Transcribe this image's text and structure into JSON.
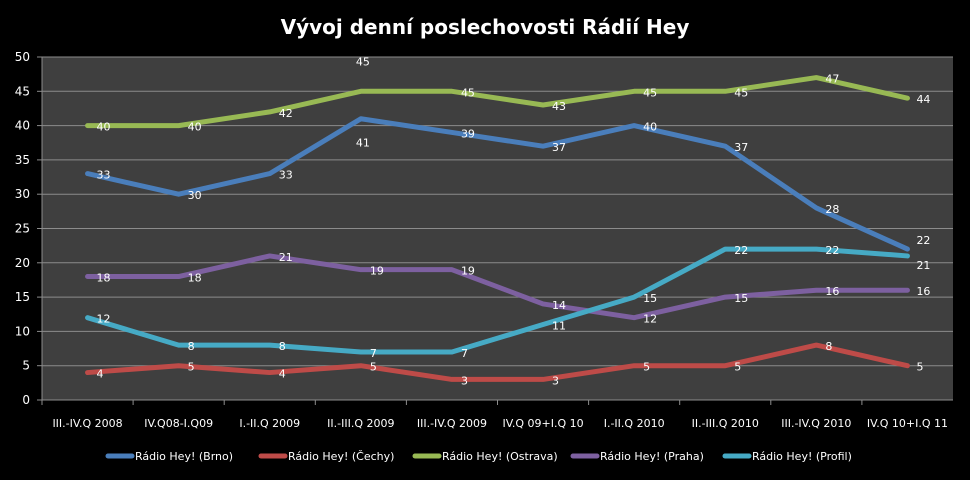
{
  "chart_data": {
    "type": "line",
    "title": "Vývoj denní poslechovosti Rádií Hey",
    "xlabel": "",
    "ylabel": "",
    "ylim": [
      0,
      50
    ],
    "ytick_step": 5,
    "grid": true,
    "legend_position": "bottom",
    "categories": [
      "III.-IV.Q  2008",
      "IV.Q08-I.Q09",
      "I.-II.Q 2009",
      "II.-III.Q  2009",
      "III.-IV.Q  2009",
      "IV.Q 09+I.Q 10",
      "I.-II.Q 2010",
      "II.-III.Q  2010",
      "III.-IV.Q  2010",
      "IV.Q 10+I.Q 11"
    ],
    "series": [
      {
        "name": "Rádio Hey! (Brno)",
        "color": "#4a7ebb",
        "values": [
          33,
          30,
          33,
          41,
          39,
          37,
          40,
          37,
          28,
          22
        ]
      },
      {
        "name": "Rádio Hey! (Čechy)",
        "color": "#be4b48",
        "values": [
          4,
          5,
          4,
          5,
          3,
          3,
          5,
          5,
          8,
          5
        ]
      },
      {
        "name": "Rádio Hey! (Ostrava)",
        "color": "#98b954",
        "values": [
          40,
          40,
          42,
          45,
          45,
          43,
          45,
          45,
          47,
          44
        ]
      },
      {
        "name": "Rádio Hey! (Praha)",
        "color": "#7d60a0",
        "values": [
          18,
          18,
          21,
          19,
          19,
          14,
          12,
          15,
          16,
          16
        ]
      },
      {
        "name": "Rádio Hey! (Profil)",
        "color": "#46aac5",
        "values": [
          12,
          8,
          8,
          7,
          7,
          11,
          15,
          22,
          22,
          21
        ]
      }
    ]
  }
}
